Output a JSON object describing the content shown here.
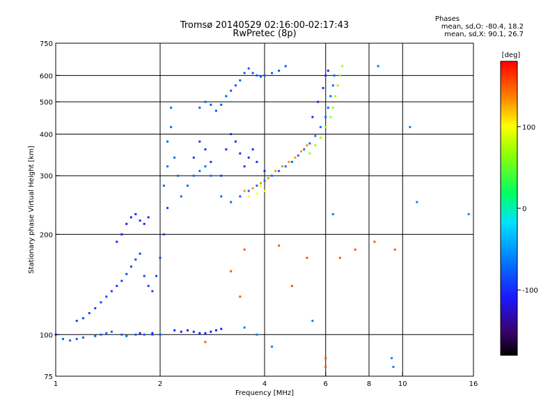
{
  "title_line1": "Tromsø 20140529 02:16:00-02:17:43",
  "title_line2": "RwPretec (8p)",
  "phases": {
    "heading": "Phases",
    "o_line": "mean, sd,O: -80.4, 18.2",
    "x_line": "mean, sd,X: 90.1, 26.7"
  },
  "colorbar": {
    "unit_label": "[deg]",
    "ticks": [
      "100",
      "0",
      "-100"
    ],
    "tick_values": [
      100,
      0,
      -100
    ],
    "range": [
      -180,
      180
    ]
  },
  "chart_data": {
    "type": "scatter",
    "xlabel": "Frequency [MHz]",
    "ylabel": "Stationary phase Virtual Height [km]",
    "x_scale": "log",
    "y_scale": "log",
    "xlim": [
      1,
      16
    ],
    "ylim": [
      75,
      750
    ],
    "x_ticks": [
      1,
      2,
      4,
      6,
      8,
      10,
      16
    ],
    "x_tick_labels": [
      "1",
      "2",
      "4",
      "6",
      "8",
      "10",
      "16"
    ],
    "y_ticks": [
      75,
      100,
      200,
      300,
      400,
      500,
      600,
      750
    ],
    "y_tick_labels": [
      "75",
      "100",
      "200",
      "300",
      "400",
      "500",
      "600",
      "750"
    ],
    "x_gridlines": [
      2,
      4,
      6,
      8,
      10
    ],
    "y_gridlines": [
      100,
      200,
      300,
      400,
      500,
      600
    ],
    "series": [
      {
        "color_phase": -75,
        "points": [
          [
            1.0,
            100
          ],
          [
            1.05,
            97
          ],
          [
            1.1,
            96
          ],
          [
            1.15,
            97
          ],
          [
            1.2,
            98
          ],
          [
            1.3,
            99
          ],
          [
            1.35,
            100
          ],
          [
            1.4,
            101
          ],
          [
            1.45,
            102
          ],
          [
            1.55,
            100
          ],
          [
            1.6,
            99
          ],
          [
            1.7,
            100
          ],
          [
            1.8,
            100
          ],
          [
            1.9,
            100
          ],
          [
            2.0,
            100
          ]
        ]
      },
      {
        "color_phase": -90,
        "points": [
          [
            1.15,
            110
          ],
          [
            1.2,
            112
          ],
          [
            1.25,
            116
          ],
          [
            1.3,
            120
          ],
          [
            1.35,
            125
          ],
          [
            1.4,
            130
          ],
          [
            1.45,
            135
          ],
          [
            1.5,
            140
          ],
          [
            1.55,
            145
          ],
          [
            1.6,
            152
          ],
          [
            1.65,
            160
          ],
          [
            1.7,
            168
          ],
          [
            1.75,
            175
          ],
          [
            1.8,
            150
          ],
          [
            1.85,
            140
          ],
          [
            1.9,
            135
          ],
          [
            1.95,
            150
          ],
          [
            2.0,
            170
          ],
          [
            2.05,
            200
          ],
          [
            2.1,
            240
          ]
        ]
      },
      {
        "color_phase": -105,
        "points": [
          [
            1.55,
            200
          ],
          [
            1.6,
            215
          ],
          [
            1.65,
            225
          ],
          [
            1.7,
            230
          ],
          [
            1.75,
            220
          ],
          [
            1.8,
            215
          ],
          [
            1.85,
            225
          ],
          [
            1.5,
            190
          ]
        ]
      },
      {
        "color_phase": -70,
        "points": [
          [
            2.05,
            280
          ],
          [
            2.1,
            320
          ],
          [
            2.1,
            380
          ],
          [
            2.15,
            420
          ],
          [
            2.15,
            480
          ],
          [
            2.2,
            340
          ],
          [
            2.25,
            300
          ],
          [
            2.3,
            260
          ],
          [
            2.4,
            280
          ],
          [
            2.5,
            300
          ],
          [
            2.6,
            310
          ],
          [
            2.7,
            320
          ],
          [
            2.8,
            300
          ],
          [
            3.0,
            260
          ],
          [
            3.2,
            250
          ],
          [
            3.4,
            260
          ],
          [
            3.6,
            270
          ],
          [
            3.8,
            280
          ],
          [
            4.0,
            290
          ],
          [
            4.2,
            300
          ],
          [
            4.4,
            310
          ],
          [
            4.6,
            320
          ],
          [
            4.8,
            330
          ],
          [
            5.0,
            345
          ],
          [
            5.2,
            360
          ],
          [
            5.4,
            375
          ],
          [
            5.6,
            395
          ],
          [
            5.8,
            420
          ],
          [
            6.0,
            450
          ],
          [
            6.1,
            480
          ],
          [
            6.2,
            520
          ],
          [
            6.3,
            560
          ],
          [
            6.35,
            600
          ]
        ]
      },
      {
        "color_phase": -100,
        "points": [
          [
            2.5,
            340
          ],
          [
            2.6,
            380
          ],
          [
            2.7,
            360
          ],
          [
            2.8,
            330
          ],
          [
            3.0,
            300
          ],
          [
            3.1,
            360
          ],
          [
            3.2,
            400
          ],
          [
            3.3,
            380
          ],
          [
            3.4,
            350
          ],
          [
            3.5,
            320
          ],
          [
            3.6,
            340
          ],
          [
            3.7,
            360
          ],
          [
            3.8,
            330
          ],
          [
            4.0,
            310
          ],
          [
            5.5,
            450
          ],
          [
            5.7,
            500
          ],
          [
            5.9,
            550
          ],
          [
            6.0,
            600
          ],
          [
            6.1,
            620
          ]
        ]
      },
      {
        "color_phase": -80,
        "points": [
          [
            2.6,
            480
          ],
          [
            2.7,
            500
          ],
          [
            2.8,
            490
          ],
          [
            2.9,
            470
          ],
          [
            3.0,
            490
          ],
          [
            3.1,
            520
          ],
          [
            3.2,
            540
          ],
          [
            3.3,
            560
          ],
          [
            3.4,
            580
          ],
          [
            3.5,
            610
          ],
          [
            3.6,
            630
          ],
          [
            3.7,
            610
          ],
          [
            3.8,
            600
          ],
          [
            3.9,
            595
          ],
          [
            4.0,
            600
          ],
          [
            4.2,
            610
          ],
          [
            4.4,
            620
          ],
          [
            4.6,
            640
          ]
        ]
      },
      {
        "color_phase": 70,
        "points": [
          [
            5.4,
            350
          ],
          [
            5.6,
            370
          ],
          [
            5.8,
            390
          ],
          [
            6.0,
            420
          ],
          [
            6.2,
            450
          ],
          [
            6.3,
            480
          ],
          [
            6.4,
            520
          ],
          [
            6.5,
            560
          ],
          [
            6.6,
            600
          ],
          [
            6.7,
            640
          ]
        ]
      },
      {
        "color_phase": 130,
        "points": [
          [
            3.5,
            270
          ],
          [
            3.7,
            275
          ],
          [
            3.9,
            285
          ],
          [
            4.1,
            295
          ],
          [
            4.3,
            310
          ],
          [
            4.5,
            320
          ],
          [
            4.7,
            330
          ],
          [
            4.9,
            340
          ],
          [
            5.1,
            355
          ],
          [
            5.3,
            370
          ]
        ]
      },
      {
        "color_phase": 100,
        "points": [
          [
            3.6,
            260
          ],
          [
            3.8,
            265
          ],
          [
            4.0,
            270
          ],
          [
            3.9,
            280
          ]
        ]
      },
      {
        "color_phase": 150,
        "points": [
          [
            2.7,
            95
          ],
          [
            3.2,
            155
          ],
          [
            3.5,
            180
          ],
          [
            4.4,
            185
          ],
          [
            5.3,
            170
          ],
          [
            6.0,
            80
          ],
          [
            6.0,
            85
          ],
          [
            6.6,
            170
          ],
          [
            7.3,
            180
          ],
          [
            8.3,
            190
          ],
          [
            9.5,
            180
          ],
          [
            3.4,
            130
          ],
          [
            4.8,
            140
          ]
        ]
      },
      {
        "color_phase": -60,
        "points": [
          [
            3.8,
            100
          ],
          [
            4.2,
            92
          ],
          [
            5.5,
            110
          ],
          [
            6.3,
            230
          ],
          [
            8.5,
            640
          ],
          [
            9.3,
            85
          ],
          [
            9.4,
            80
          ],
          [
            10.5,
            420
          ],
          [
            11.0,
            250
          ],
          [
            15.5,
            230
          ],
          [
            3.5,
            105
          ]
        ]
      },
      {
        "color_phase": -110,
        "points": [
          [
            2.4,
            103
          ],
          [
            2.5,
            102
          ],
          [
            2.6,
            101
          ],
          [
            2.7,
            101
          ],
          [
            2.8,
            102
          ],
          [
            2.9,
            103
          ],
          [
            3.0,
            104
          ],
          [
            2.2,
            103
          ],
          [
            2.3,
            102
          ],
          [
            1.9,
            101
          ],
          [
            1.75,
            101
          ]
        ]
      }
    ]
  }
}
